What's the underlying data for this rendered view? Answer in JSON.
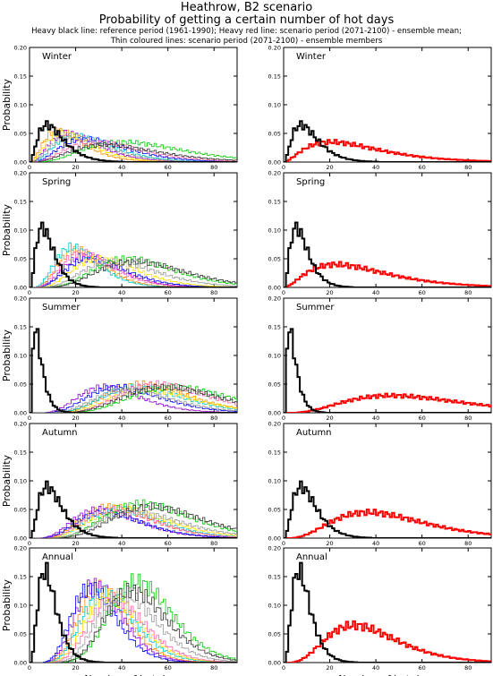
{
  "header": {
    "title": "Heathrow, B2 scenario",
    "subtitle": "Probability of getting a certain number of hot days",
    "legend_line1": "Heavy black line: reference period (1961-1990); Heavy red line: scenario period (2071-2100) - ensemble mean;",
    "legend_line2": "Thin coloured lines: scenario period (2071-2100) - ensemble members"
  },
  "chart_data": {
    "type": "line",
    "style": "step",
    "xlabel": "Number of hot days",
    "ylabel": "Probability",
    "xlim": [
      0,
      90
    ],
    "ylim": [
      0,
      0.2
    ],
    "xticks": [
      0,
      20,
      40,
      60,
      80
    ],
    "yticks": [
      0.0,
      0.05,
      0.1,
      0.15,
      0.2
    ],
    "ytick_labels": [
      "0.00",
      "0.05",
      "0.10",
      "0.15",
      "0.20"
    ],
    "grid": false,
    "colors": {
      "reference": "#000000",
      "scenario_mean": "#ff0000",
      "members": [
        "#ff8c00",
        "#9400d3",
        "#00c8c8",
        "#0000ff",
        "#ffdd00",
        "#00cc00",
        "#ff66aa",
        "#999999",
        "#333333"
      ]
    },
    "panels": [
      {
        "season": "Winter",
        "column": "left",
        "reference": {
          "peak_x": 7,
          "peak_y": 0.065,
          "spread": 6
        },
        "members": [
          {
            "peak_x": 12,
            "peak_y": 0.055,
            "spread": 8
          },
          {
            "peak_x": 16,
            "peak_y": 0.05,
            "spread": 9
          },
          {
            "peak_x": 20,
            "peak_y": 0.045,
            "spread": 10
          },
          {
            "peak_x": 24,
            "peak_y": 0.04,
            "spread": 11
          },
          {
            "peak_x": 14,
            "peak_y": 0.05,
            "spread": 9
          },
          {
            "peak_x": 40,
            "peak_y": 0.035,
            "spread": 14
          },
          {
            "peak_x": 28,
            "peak_y": 0.035,
            "spread": 12
          },
          {
            "peak_x": 18,
            "peak_y": 0.045,
            "spread": 10
          },
          {
            "peak_x": 32,
            "peak_y": 0.03,
            "spread": 14
          }
        ]
      },
      {
        "season": "Winter",
        "column": "right",
        "reference": {
          "peak_x": 7,
          "peak_y": 0.065,
          "spread": 6
        },
        "mean": {
          "peak_x": 20,
          "peak_y": 0.035,
          "spread": 18
        }
      },
      {
        "season": "Spring",
        "column": "left",
        "reference": {
          "peak_x": 5,
          "peak_y": 0.105,
          "spread": 4
        },
        "members": [
          {
            "peak_x": 20,
            "peak_y": 0.065,
            "spread": 6
          },
          {
            "peak_x": 24,
            "peak_y": 0.055,
            "spread": 7
          },
          {
            "peak_x": 18,
            "peak_y": 0.07,
            "spread": 6
          },
          {
            "peak_x": 26,
            "peak_y": 0.05,
            "spread": 8
          },
          {
            "peak_x": 30,
            "peak_y": 0.05,
            "spread": 8
          },
          {
            "peak_x": 42,
            "peak_y": 0.05,
            "spread": 9
          },
          {
            "peak_x": 22,
            "peak_y": 0.06,
            "spread": 7
          },
          {
            "peak_x": 36,
            "peak_y": 0.045,
            "spread": 9
          },
          {
            "peak_x": 45,
            "peak_y": 0.045,
            "spread": 10
          }
        ]
      },
      {
        "season": "Spring",
        "column": "right",
        "reference": {
          "peak_x": 5,
          "peak_y": 0.105,
          "spread": 4
        },
        "mean": {
          "peak_x": 22,
          "peak_y": 0.04,
          "spread": 18
        }
      },
      {
        "season": "Summer",
        "column": "left",
        "reference": {
          "peak_x": 2,
          "peak_y": 0.145,
          "spread": 3
        },
        "members": [
          {
            "peak_x": 48,
            "peak_y": 0.05,
            "spread": 8
          },
          {
            "peak_x": 32,
            "peak_y": 0.045,
            "spread": 7
          },
          {
            "peak_x": 46,
            "peak_y": 0.045,
            "spread": 8
          },
          {
            "peak_x": 38,
            "peak_y": 0.045,
            "spread": 8
          },
          {
            "peak_x": 50,
            "peak_y": 0.04,
            "spread": 8
          },
          {
            "peak_x": 62,
            "peak_y": 0.045,
            "spread": 9
          },
          {
            "peak_x": 55,
            "peak_y": 0.05,
            "spread": 8
          },
          {
            "peak_x": 42,
            "peak_y": 0.04,
            "spread": 8
          },
          {
            "peak_x": 58,
            "peak_y": 0.045,
            "spread": 9
          }
        ]
      },
      {
        "season": "Summer",
        "column": "right",
        "reference": {
          "peak_x": 2,
          "peak_y": 0.145,
          "spread": 3
        },
        "mean": {
          "peak_x": 46,
          "peak_y": 0.03,
          "spread": 18
        }
      },
      {
        "season": "Autumn",
        "column": "left",
        "reference": {
          "peak_x": 7,
          "peak_y": 0.09,
          "spread": 5
        },
        "members": [
          {
            "peak_x": 35,
            "peak_y": 0.055,
            "spread": 8
          },
          {
            "peak_x": 30,
            "peak_y": 0.05,
            "spread": 8
          },
          {
            "peak_x": 38,
            "peak_y": 0.05,
            "spread": 8
          },
          {
            "peak_x": 32,
            "peak_y": 0.045,
            "spread": 8
          },
          {
            "peak_x": 40,
            "peak_y": 0.05,
            "spread": 9
          },
          {
            "peak_x": 48,
            "peak_y": 0.06,
            "spread": 9
          },
          {
            "peak_x": 36,
            "peak_y": 0.05,
            "spread": 8
          },
          {
            "peak_x": 45,
            "peak_y": 0.045,
            "spread": 9
          },
          {
            "peak_x": 52,
            "peak_y": 0.055,
            "spread": 9
          }
        ]
      },
      {
        "season": "Autumn",
        "column": "right",
        "reference": {
          "peak_x": 7,
          "peak_y": 0.09,
          "spread": 5
        },
        "mean": {
          "peak_x": 36,
          "peak_y": 0.045,
          "spread": 14
        }
      },
      {
        "season": "Annual",
        "column": "left",
        "reference": {
          "peak_x": 6,
          "peak_y": 0.16,
          "spread": 3.5
        },
        "members": [
          {
            "peak_x": 30,
            "peak_y": 0.13,
            "spread": 4.5
          },
          {
            "peak_x": 28,
            "peak_y": 0.135,
            "spread": 4.5
          },
          {
            "peak_x": 32,
            "peak_y": 0.12,
            "spread": 5
          },
          {
            "peak_x": 26,
            "peak_y": 0.13,
            "spread": 4.5
          },
          {
            "peak_x": 34,
            "peak_y": 0.115,
            "spread": 5
          },
          {
            "peak_x": 46,
            "peak_y": 0.14,
            "spread": 5
          },
          {
            "peak_x": 36,
            "peak_y": 0.11,
            "spread": 5
          },
          {
            "peak_x": 40,
            "peak_y": 0.12,
            "spread": 5
          },
          {
            "peak_x": 44,
            "peak_y": 0.125,
            "spread": 5
          }
        ]
      },
      {
        "season": "Annual",
        "column": "right",
        "reference": {
          "peak_x": 6,
          "peak_y": 0.16,
          "spread": 3.5
        },
        "mean": {
          "peak_x": 30,
          "peak_y": 0.065,
          "spread": 10
        }
      }
    ]
  }
}
